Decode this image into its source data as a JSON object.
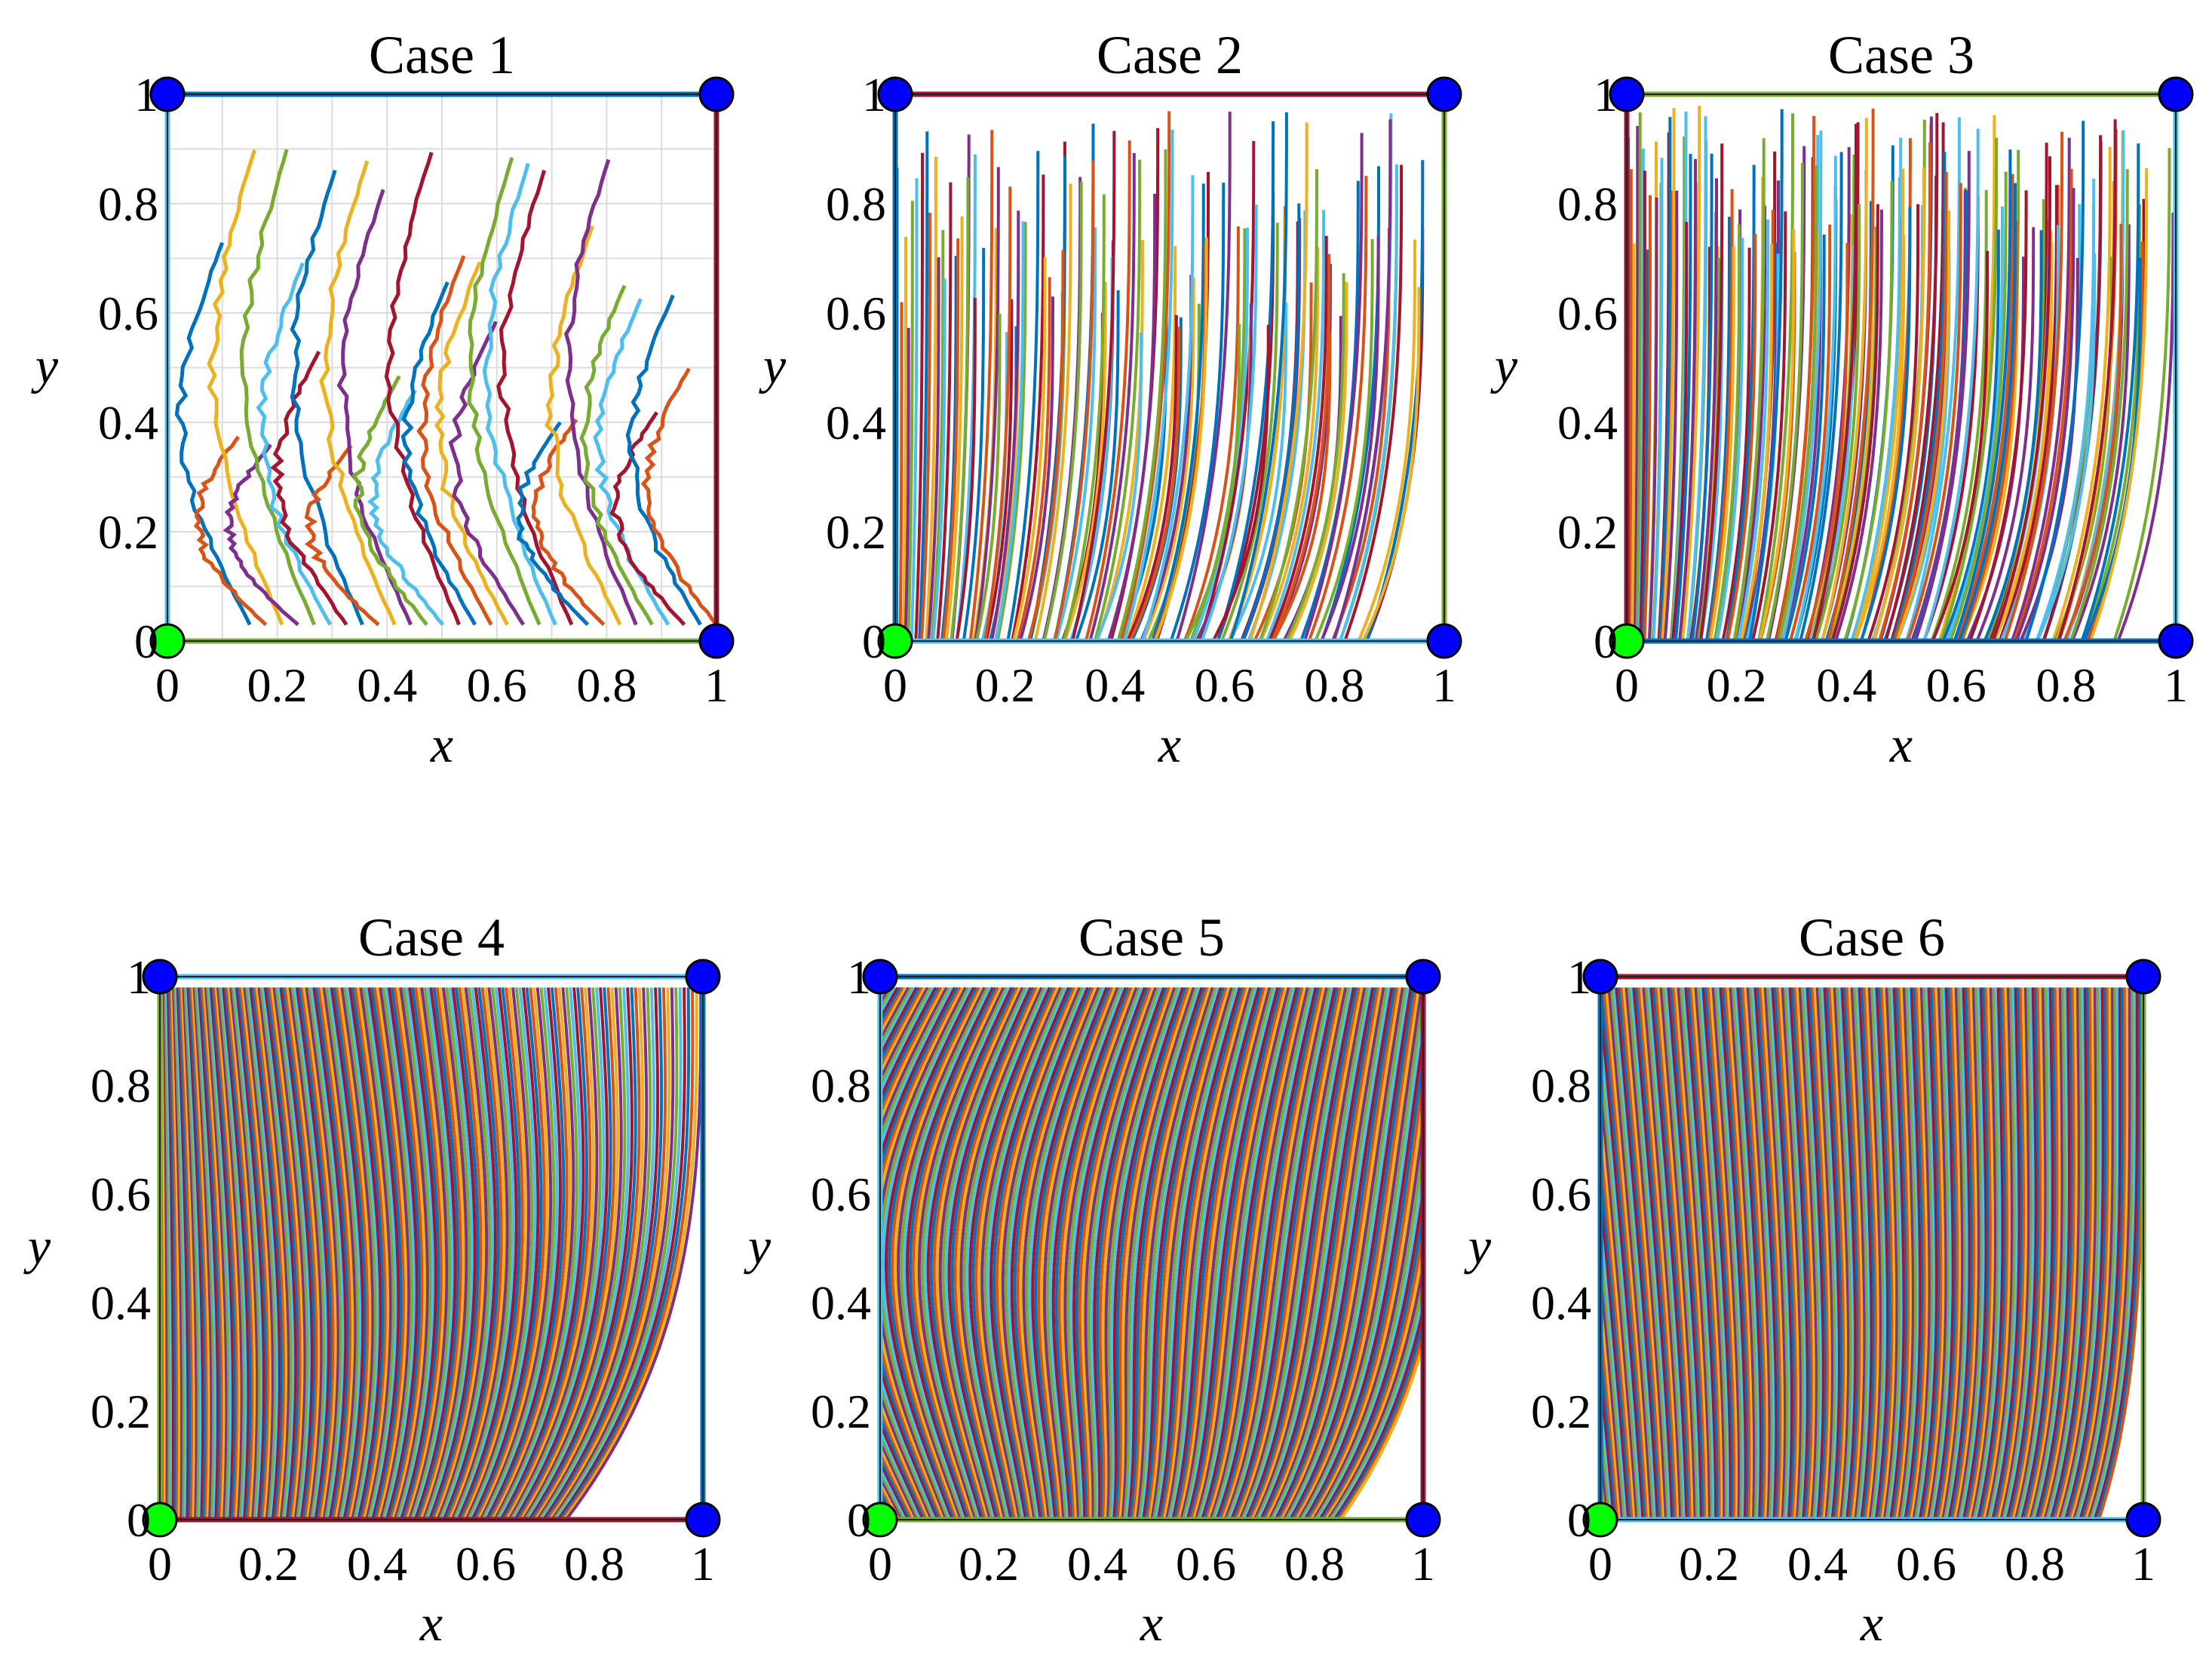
{
  "figure": {
    "palette": [
      "#0072BD",
      "#D95319",
      "#EDB120",
      "#7E2F8E",
      "#77AC30",
      "#4DBEEE",
      "#A2142F"
    ],
    "marker_colors": {
      "corner": "#0000FF",
      "origin": "#00FF00"
    }
  },
  "chart_data": [
    {
      "type": "line",
      "title": "Case 1",
      "xlabel": "x",
      "ylabel": "y",
      "xlim": [
        0,
        1
      ],
      "ylim": [
        0,
        1
      ],
      "xticks": [
        "0",
        "0.2",
        "0.4",
        "0.6",
        "0.8",
        "1"
      ],
      "yticks": [
        "0",
        "0.2",
        "0.4",
        "0.6",
        "0.8",
        "1"
      ],
      "grid": true,
      "n_trajectories": 30,
      "trajectory_family": "curves bending toward the lower-left origin, arc-like",
      "corner_markers": [
        [
          0,
          1
        ],
        [
          1,
          1
        ],
        [
          1,
          0
        ]
      ],
      "origin_marker": [
        0,
        0
      ]
    },
    {
      "type": "line",
      "title": "Case 2",
      "xlabel": "x",
      "ylabel": "y",
      "xlim": [
        0,
        1
      ],
      "ylim": [
        0,
        1
      ],
      "xticks": [
        "0",
        "0.2",
        "0.4",
        "0.6",
        "0.8",
        "1"
      ],
      "yticks": [
        "0",
        "0.2",
        "0.4",
        "0.6",
        "0.8",
        "1"
      ],
      "grid": false,
      "n_trajectories": 130,
      "trajectory_family": "dense curves falling to the bottom boundary",
      "corner_markers": [
        [
          0,
          1
        ],
        [
          1,
          1
        ],
        [
          1,
          0
        ]
      ],
      "origin_marker": [
        0,
        0
      ]
    },
    {
      "type": "line",
      "title": "Case 3",
      "xlabel": "x",
      "ylabel": "y",
      "xlim": [
        0,
        1
      ],
      "ylim": [
        0,
        1
      ],
      "xticks": [
        "0",
        "0.2",
        "0.4",
        "0.6",
        "0.8",
        "1"
      ],
      "yticks": [
        "0",
        "0.2",
        "0.4",
        "0.6",
        "0.8",
        "1"
      ],
      "grid": false,
      "n_trajectories": 180,
      "trajectory_family": "very dense curves falling to the bottom boundary",
      "corner_markers": [
        [
          0,
          1
        ],
        [
          1,
          1
        ],
        [
          1,
          0
        ]
      ],
      "origin_marker": [
        0,
        0
      ]
    },
    {
      "type": "line",
      "title": "Case 4",
      "xlabel": "x",
      "ylabel": "y",
      "xlim": [
        0,
        1
      ],
      "ylim": [
        0,
        1
      ],
      "xticks": [
        "0",
        "0.2",
        "0.4",
        "0.6",
        "0.8",
        "1"
      ],
      "yticks": [
        "0",
        "0.2",
        "0.4",
        "0.6",
        "0.8",
        "1"
      ],
      "grid": false,
      "n_trajectories": 200,
      "trajectory_family": "dense curves with diagonal fan from top-left",
      "corner_markers": [
        [
          0,
          1
        ],
        [
          1,
          1
        ],
        [
          1,
          0
        ]
      ],
      "origin_marker": [
        0,
        0
      ]
    },
    {
      "type": "line",
      "title": "Case 5",
      "xlabel": "x",
      "ylabel": "y",
      "xlim": [
        0,
        1
      ],
      "ylim": [
        0,
        1
      ],
      "xticks": [
        "0",
        "0.2",
        "0.4",
        "0.6",
        "0.8",
        "1"
      ],
      "yticks": [
        "0",
        "0.2",
        "0.4",
        "0.6",
        "0.8",
        "1"
      ],
      "grid": false,
      "n_trajectories": 220,
      "trajectory_family": "dense S-shaped curves sweeping right",
      "corner_markers": [
        [
          0,
          1
        ],
        [
          1,
          1
        ],
        [
          1,
          0
        ]
      ],
      "origin_marker": [
        0,
        0
      ]
    },
    {
      "type": "line",
      "title": "Case 6",
      "xlabel": "x",
      "ylabel": "y",
      "xlim": [
        0,
        1
      ],
      "ylim": [
        0,
        1
      ],
      "xticks": [
        "0",
        "0.2",
        "0.4",
        "0.6",
        "0.8",
        "1"
      ],
      "yticks": [
        "0",
        "0.2",
        "0.4",
        "0.6",
        "0.8",
        "1"
      ],
      "grid": false,
      "n_trajectories": 240,
      "trajectory_family": "very dense near-vertical curves with diagonal texture",
      "corner_markers": [
        [
          0,
          1
        ],
        [
          1,
          1
        ],
        [
          1,
          0
        ]
      ],
      "origin_marker": [
        0,
        0
      ]
    }
  ]
}
